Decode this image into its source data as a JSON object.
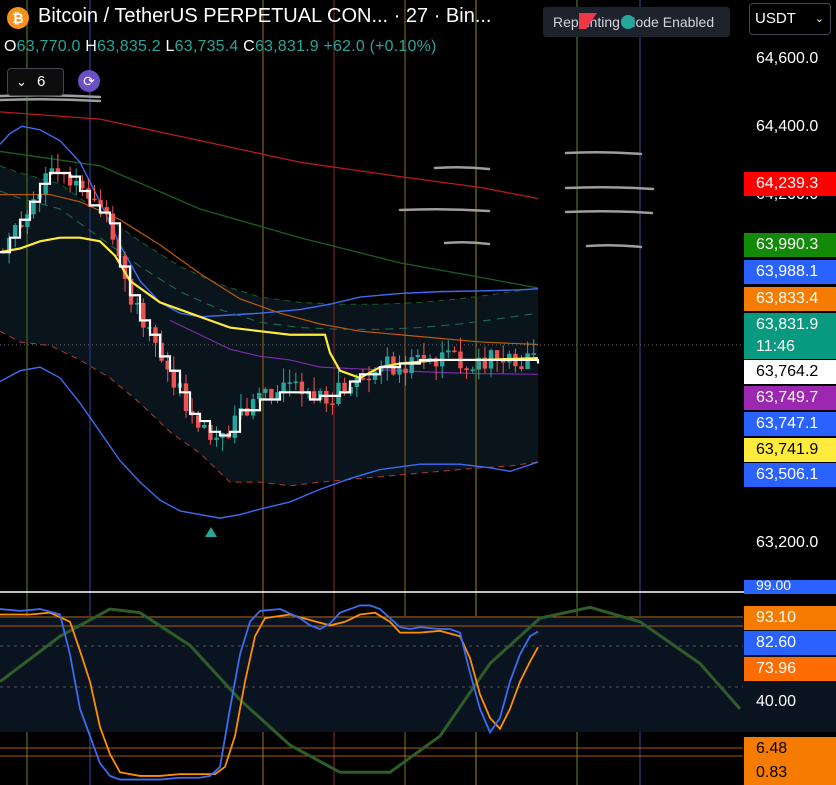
{
  "header": {
    "coin_icon": "bitcoin-icon",
    "coin_glyph": "₿",
    "title": "Bitcoin / TetherUS PERPETUAL CON... · 27 · Bin...",
    "ohlc": {
      "o_label": "O",
      "o_value": "63,770.0",
      "h_label": "H",
      "h_value": "63,835.2",
      "l_label": "L",
      "l_value": "63,735.4",
      "c_label": "C",
      "c_value": "63,831.9",
      "change": "+62.0 (+0.10%)"
    },
    "indicator_count": "6",
    "repaint_label": "Repainting Mode Enabled",
    "currency": "USDT"
  },
  "price_axis": {
    "ticks": [
      "64,600.0",
      "64,400.0",
      "64,200.0",
      "63,200.0"
    ]
  },
  "price_tags": [
    {
      "value": "64,239.3",
      "color": "#ff0000"
    },
    {
      "value": "63,990.3",
      "color": "#138a07"
    },
    {
      "value": "63,988.1",
      "color": "#2962ff"
    },
    {
      "value": "63,833.4",
      "color": "#f57c00"
    },
    {
      "value": "63,831.9",
      "color": "#089981",
      "sub": "11:46"
    },
    {
      "value": "63,764.2",
      "color": "#ffffff",
      "text": "#000000"
    },
    {
      "value": "63,749.7",
      "color": "#9c27b0"
    },
    {
      "value": "63,747.1",
      "color": "#2962ff"
    },
    {
      "value": "63,741.9",
      "color": "#ffeb3b",
      "text": "#000000"
    },
    {
      "value": "63,506.1",
      "color": "#2962ff"
    }
  ],
  "oscillator_axis": {
    "cut_label": "99.00",
    "tags": [
      {
        "value": "93.10",
        "color": "#f57c00"
      },
      {
        "value": "82.60",
        "color": "#2962ff"
      },
      {
        "value": "73.96",
        "color": "#ff6d00"
      },
      {
        "value": "40.00",
        "color": "#000000"
      },
      {
        "value": "6.48",
        "color": "#f57c00",
        "text": "#000000"
      },
      {
        "value": "0.83",
        "color": "#f57c00",
        "text": "#000000"
      }
    ]
  },
  "chart_data": {
    "type": "candlestick",
    "ylim": [
      63150,
      64680
    ],
    "bands": {
      "upper_blue": [
        [
          0,
          64390
        ],
        [
          10,
          64420
        ],
        [
          22,
          64440
        ],
        [
          40,
          64430
        ],
        [
          60,
          64400
        ],
        [
          80,
          64340
        ],
        [
          100,
          64230
        ],
        [
          120,
          64110
        ],
        [
          140,
          64010
        ],
        [
          160,
          63950
        ],
        [
          180,
          63920
        ],
        [
          200,
          63910
        ],
        [
          230,
          63915
        ],
        [
          260,
          63920
        ],
        [
          300,
          63930
        ],
        [
          330,
          63945
        ],
        [
          360,
          63965
        ],
        [
          400,
          63975
        ],
        [
          440,
          63980
        ],
        [
          480,
          63982
        ],
        [
          520,
          63985
        ],
        [
          538,
          63988
        ]
      ],
      "lower_blue": [
        [
          0,
          63730
        ],
        [
          20,
          63760
        ],
        [
          40,
          63770
        ],
        [
          60,
          63740
        ],
        [
          80,
          63670
        ],
        [
          100,
          63590
        ],
        [
          120,
          63510
        ],
        [
          140,
          63450
        ],
        [
          160,
          63400
        ],
        [
          180,
          63370
        ],
        [
          200,
          63360
        ],
        [
          220,
          63350
        ],
        [
          240,
          63360
        ],
        [
          260,
          63375
        ],
        [
          290,
          63395
        ],
        [
          320,
          63430
        ],
        [
          350,
          63460
        ],
        [
          380,
          63485
        ],
        [
          420,
          63500
        ],
        [
          460,
          63500
        ],
        [
          490,
          63490
        ],
        [
          510,
          63480
        ],
        [
          538,
          63506
        ]
      ],
      "outer_upper": [
        [
          0,
          64330
        ],
        [
          20,
          64310
        ],
        [
          60,
          64280
        ],
        [
          100,
          64200
        ],
        [
          140,
          64120
        ],
        [
          180,
          64050
        ],
        [
          220,
          64000
        ],
        [
          260,
          63965
        ],
        [
          300,
          63950
        ],
        [
          340,
          63945
        ],
        [
          380,
          63945
        ],
        [
          420,
          63950
        ],
        [
          460,
          63960
        ],
        [
          500,
          63975
        ],
        [
          538,
          63990
        ]
      ],
      "outer_lower": [
        [
          0,
          63870
        ],
        [
          20,
          63840
        ],
        [
          50,
          63830
        ],
        [
          80,
          63790
        ],
        [
          110,
          63740
        ],
        [
          140,
          63670
        ],
        [
          170,
          63590
        ],
        [
          200,
          63530
        ],
        [
          230,
          63450
        ],
        [
          260,
          63450
        ],
        [
          290,
          63440
        ],
        [
          320,
          63450
        ],
        [
          360,
          63460
        ],
        [
          400,
          63470
        ],
        [
          440,
          63480
        ],
        [
          480,
          63490
        ],
        [
          510,
          63495
        ],
        [
          538,
          63506
        ]
      ],
      "red_long": [
        [
          0,
          64480
        ],
        [
          100,
          64460
        ],
        [
          200,
          64400
        ],
        [
          300,
          64340
        ],
        [
          400,
          64300
        ],
        [
          480,
          64270
        ],
        [
          538,
          64239
        ]
      ],
      "green_long": [
        [
          0,
          64370
        ],
        [
          100,
          64330
        ],
        [
          200,
          64210
        ],
        [
          300,
          64130
        ],
        [
          400,
          64060
        ],
        [
          480,
          64020
        ],
        [
          538,
          63990
        ]
      ],
      "orange_mid": [
        [
          0,
          64250
        ],
        [
          50,
          64250
        ],
        [
          80,
          64230
        ],
        [
          120,
          64180
        ],
        [
          160,
          64110
        ],
        [
          200,
          64030
        ],
        [
          240,
          63960
        ],
        [
          280,
          63920
        ],
        [
          320,
          63890
        ],
        [
          360,
          63870
        ],
        [
          400,
          63860
        ],
        [
          440,
          63850
        ],
        [
          480,
          63840
        ],
        [
          538,
          63833
        ]
      ],
      "purple": [
        [
          170,
          63900
        ],
        [
          200,
          63860
        ],
        [
          230,
          63820
        ],
        [
          260,
          63800
        ],
        [
          290,
          63790
        ],
        [
          320,
          63770
        ],
        [
          360,
          63765
        ],
        [
          400,
          63760
        ],
        [
          440,
          63755
        ],
        [
          480,
          63752
        ],
        [
          538,
          63750
        ]
      ]
    },
    "yellow_line": [
      [
        0,
        64090
      ],
      [
        20,
        64100
      ],
      [
        40,
        64120
      ],
      [
        60,
        64130
      ],
      [
        80,
        64130
      ],
      [
        100,
        64120
      ],
      [
        115,
        64080
      ],
      [
        130,
        64010
      ],
      [
        160,
        63950
      ],
      [
        190,
        63920
      ],
      [
        210,
        63900
      ],
      [
        230,
        63880
      ],
      [
        260,
        63870
      ],
      [
        290,
        63860
      ],
      [
        325,
        63860
      ],
      [
        330,
        63810
      ],
      [
        340,
        63760
      ],
      [
        360,
        63740
      ],
      [
        380,
        63770
      ],
      [
        400,
        63780
      ],
      [
        440,
        63790
      ],
      [
        480,
        63790
      ],
      [
        538,
        63795
      ]
    ],
    "white_step": [
      [
        0,
        64090
      ],
      [
        10,
        64130
      ],
      [
        20,
        64180
      ],
      [
        30,
        64230
      ],
      [
        40,
        64280
      ],
      [
        50,
        64310
      ],
      [
        60,
        64310
      ],
      [
        70,
        64300
      ],
      [
        80,
        64260
      ],
      [
        90,
        64220
      ],
      [
        100,
        64200
      ],
      [
        110,
        64170
      ],
      [
        120,
        64050
      ],
      [
        130,
        63970
      ],
      [
        140,
        63900
      ],
      [
        150,
        63860
      ],
      [
        160,
        63800
      ],
      [
        170,
        63760
      ],
      [
        180,
        63700
      ],
      [
        190,
        63640
      ],
      [
        200,
        63620
      ],
      [
        210,
        63590
      ],
      [
        220,
        63580
      ],
      [
        230,
        63590
      ],
      [
        240,
        63650
      ],
      [
        260,
        63680
      ],
      [
        280,
        63700
      ],
      [
        300,
        63700
      ],
      [
        310,
        63680
      ],
      [
        320,
        63690
      ],
      [
        330,
        63690
      ],
      [
        340,
        63700
      ],
      [
        350,
        63730
      ],
      [
        360,
        63750
      ],
      [
        380,
        63770
      ],
      [
        400,
        63780
      ],
      [
        420,
        63790
      ],
      [
        440,
        63790
      ],
      [
        460,
        63790
      ],
      [
        480,
        63790
      ],
      [
        500,
        63790
      ],
      [
        538,
        63780
      ]
    ],
    "candles_seed": 27,
    "oscillator": {
      "ylim": [
        -2,
        100
      ],
      "blue": [
        [
          0,
          95
        ],
        [
          20,
          94
        ],
        [
          40,
          95
        ],
        [
          60,
          92
        ],
        [
          70,
          70
        ],
        [
          80,
          40
        ],
        [
          90,
          25
        ],
        [
          100,
          10
        ],
        [
          110,
          3
        ],
        [
          120,
          1
        ],
        [
          140,
          1
        ],
        [
          160,
          1
        ],
        [
          180,
          2
        ],
        [
          200,
          2
        ],
        [
          210,
          3
        ],
        [
          220,
          8
        ],
        [
          230,
          40
        ],
        [
          240,
          70
        ],
        [
          250,
          88
        ],
        [
          260,
          94
        ],
        [
          280,
          95
        ],
        [
          300,
          90
        ],
        [
          310,
          86
        ],
        [
          320,
          84
        ],
        [
          330,
          87
        ],
        [
          340,
          93
        ],
        [
          350,
          95
        ],
        [
          360,
          97
        ],
        [
          370,
          97
        ],
        [
          380,
          95
        ],
        [
          390,
          90
        ],
        [
          400,
          85
        ],
        [
          410,
          84
        ],
        [
          420,
          85
        ],
        [
          440,
          84
        ],
        [
          450,
          84
        ],
        [
          460,
          82
        ],
        [
          470,
          60
        ],
        [
          480,
          40
        ],
        [
          490,
          27
        ],
        [
          500,
          35
        ],
        [
          510,
          55
        ],
        [
          520,
          70
        ],
        [
          530,
          80
        ],
        [
          538,
          82.6
        ]
      ],
      "orange": [
        [
          0,
          92
        ],
        [
          30,
          92
        ],
        [
          50,
          93
        ],
        [
          70,
          88
        ],
        [
          80,
          72
        ],
        [
          90,
          55
        ],
        [
          100,
          30
        ],
        [
          110,
          15
        ],
        [
          120,
          5
        ],
        [
          140,
          3
        ],
        [
          160,
          3
        ],
        [
          180,
          4
        ],
        [
          200,
          4
        ],
        [
          215,
          4
        ],
        [
          225,
          8
        ],
        [
          235,
          25
        ],
        [
          245,
          55
        ],
        [
          255,
          80
        ],
        [
          265,
          90
        ],
        [
          290,
          92
        ],
        [
          310,
          89
        ],
        [
          330,
          86
        ],
        [
          345,
          88
        ],
        [
          360,
          92
        ],
        [
          375,
          93
        ],
        [
          390,
          88
        ],
        [
          400,
          82
        ],
        [
          420,
          82
        ],
        [
          440,
          83
        ],
        [
          460,
          80
        ],
        [
          470,
          68
        ],
        [
          480,
          48
        ],
        [
          490,
          35
        ],
        [
          500,
          29
        ],
        [
          510,
          40
        ],
        [
          520,
          55
        ],
        [
          530,
          66
        ],
        [
          538,
          73.96
        ]
      ],
      "wave": [
        [
          0,
          55
        ],
        [
          60,
          80
        ],
        [
          110,
          95
        ],
        [
          140,
          93
        ],
        [
          190,
          75
        ],
        [
          240,
          45
        ],
        [
          290,
          20
        ],
        [
          340,
          5
        ],
        [
          390,
          5
        ],
        [
          440,
          25
        ],
        [
          490,
          65
        ],
        [
          540,
          90
        ],
        [
          590,
          96
        ],
        [
          640,
          88
        ],
        [
          700,
          65
        ],
        [
          740,
          40
        ]
      ]
    }
  }
}
